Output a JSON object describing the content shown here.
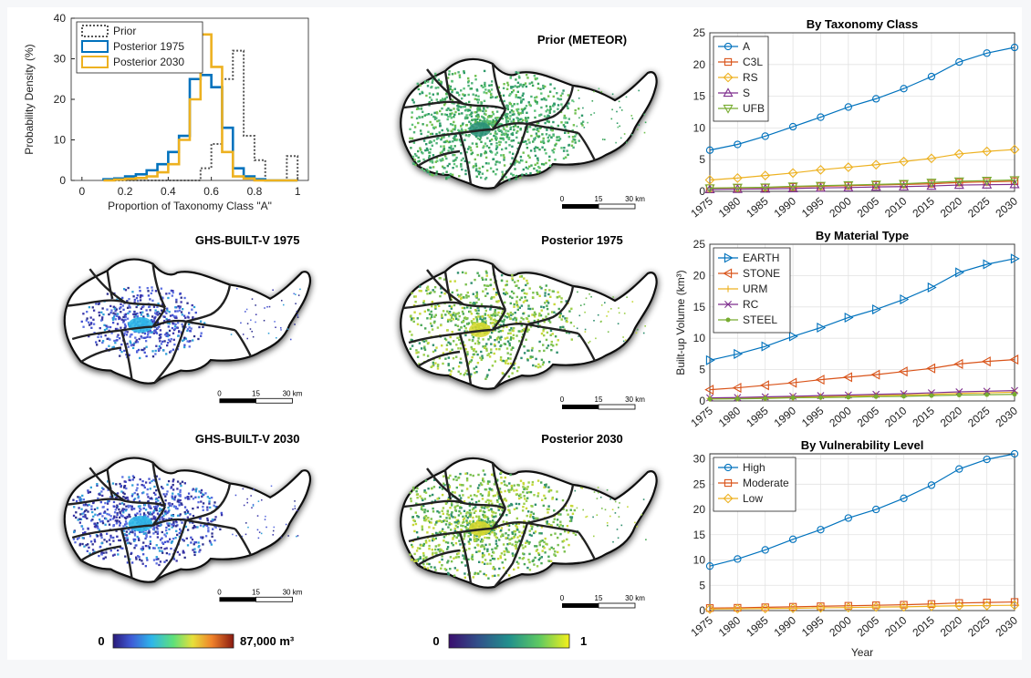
{
  "histogram": {
    "xlabel": "Proportion of Taxonomy Class \"A\"",
    "ylabel": "Probability Density (%)",
    "xticks": [
      "0",
      "0.2",
      "0.4",
      "0.6",
      "0.8",
      "1"
    ],
    "yticks": [
      "0",
      "10",
      "20",
      "30",
      "40"
    ]
  },
  "maps": {
    "prior": {
      "title": "Prior (METEOR)"
    },
    "ghs1975": {
      "title": "GHS-BUILT-V 1975"
    },
    "post1975": {
      "title": "Posterior 1975"
    },
    "ghs2030": {
      "title": "GHS-BUILT-V 2030"
    },
    "post2030": {
      "title": "Posterior 2030"
    },
    "scalebar": {
      "l0": "0",
      "l1": "15",
      "l2": "30 km"
    }
  },
  "colorbars": {
    "volume": {
      "min": "0",
      "max": "87,000 m³"
    },
    "proportion": {
      "min": "0",
      "max": "1"
    }
  },
  "shared": {
    "ylabel": "Built-up Volume (km³)",
    "xlabel": "Year"
  },
  "colors": {
    "blue": "#0072bd",
    "orange": "#d95319",
    "yellow": "#edb120",
    "purple": "#7e2f8e",
    "green": "#77ac30",
    "gray": "#555555"
  },
  "chart_data": [
    {
      "type": "bar",
      "xlabel": "Proportion of Taxonomy Class \"A\"",
      "ylabel": "Probability Density (%)",
      "xlim": [
        -0.05,
        1.05
      ],
      "ylim": [
        0,
        40
      ],
      "bin_edges": [
        0.1,
        0.15,
        0.2,
        0.25,
        0.3,
        0.35,
        0.4,
        0.45,
        0.5,
        0.55,
        0.6,
        0.65,
        0.7,
        0.75,
        0.8,
        0.85,
        0.9,
        0.95,
        1.0
      ],
      "series": [
        {
          "name": "Prior",
          "color": "#555555",
          "style": "dotted",
          "values": [
            0,
            0,
            0,
            0,
            0,
            0,
            0,
            0,
            0,
            3,
            9,
            25,
            32,
            11,
            5,
            0,
            0,
            6
          ]
        },
        {
          "name": "Posterior 1975",
          "color": "#0072bd",
          "style": "solid",
          "values": [
            0.3,
            0.5,
            1,
            1.5,
            2.5,
            4,
            7,
            11,
            25,
            26,
            23,
            13,
            3,
            1,
            0.3,
            0,
            0,
            0
          ]
        },
        {
          "name": "Posterior 2030",
          "color": "#edb120",
          "style": "solid",
          "values": [
            0,
            0.2,
            0.4,
            0.6,
            1,
            2,
            4,
            10,
            20,
            36,
            28,
            7,
            1,
            0.5,
            0,
            0,
            0,
            0
          ]
        }
      ]
    },
    {
      "type": "line",
      "title": "By Taxonomy Class",
      "x": [
        1975,
        1980,
        1985,
        1990,
        1995,
        2000,
        2005,
        2010,
        2015,
        2020,
        2025,
        2030
      ],
      "ylim": [
        0,
        25
      ],
      "yticks": [
        0,
        5,
        10,
        15,
        20,
        25
      ],
      "series": [
        {
          "name": "A",
          "marker": "circle",
          "color": "#0072bd",
          "values": [
            6.5,
            7.4,
            8.7,
            10.2,
            11.7,
            13.3,
            14.6,
            16.2,
            18.1,
            20.4,
            21.8,
            22.7
          ]
        },
        {
          "name": "C3L",
          "marker": "square",
          "color": "#d95319",
          "values": [
            0.5,
            0.55,
            0.6,
            0.7,
            0.8,
            0.9,
            1.0,
            1.1,
            1.2,
            1.4,
            1.5,
            1.6
          ]
        },
        {
          "name": "RS",
          "marker": "diamond",
          "color": "#edb120",
          "values": [
            1.8,
            2.1,
            2.5,
            2.9,
            3.4,
            3.8,
            4.2,
            4.7,
            5.2,
            5.9,
            6.3,
            6.6
          ]
        },
        {
          "name": "S",
          "marker": "triangle-up",
          "color": "#7e2f8e",
          "values": [
            0.3,
            0.35,
            0.4,
            0.45,
            0.55,
            0.6,
            0.7,
            0.75,
            0.85,
            1.0,
            1.05,
            1.1
          ]
        },
        {
          "name": "UFB",
          "marker": "triangle-down",
          "color": "#77ac30",
          "values": [
            0.5,
            0.6,
            0.65,
            0.8,
            0.9,
            1.0,
            1.1,
            1.2,
            1.4,
            1.6,
            1.7,
            1.8
          ]
        }
      ]
    },
    {
      "type": "line",
      "title": "By Material Type",
      "ylabel": "Built-up Volume (km³)",
      "x": [
        1975,
        1980,
        1985,
        1990,
        1995,
        2000,
        2005,
        2010,
        2015,
        2020,
        2025,
        2030
      ],
      "ylim": [
        0,
        25
      ],
      "yticks": [
        0,
        5,
        10,
        15,
        20,
        25
      ],
      "series": [
        {
          "name": "EARTH",
          "marker": "triangle-right",
          "color": "#0072bd",
          "values": [
            6.5,
            7.5,
            8.7,
            10.3,
            11.7,
            13.3,
            14.6,
            16.2,
            18.1,
            20.5,
            21.8,
            22.7
          ]
        },
        {
          "name": "STONE",
          "marker": "triangle-left",
          "color": "#d95319",
          "values": [
            1.8,
            2.1,
            2.5,
            2.9,
            3.4,
            3.8,
            4.2,
            4.7,
            5.2,
            5.9,
            6.3,
            6.6
          ]
        },
        {
          "name": "URM",
          "marker": "plus",
          "color": "#edb120",
          "values": [
            0.4,
            0.45,
            0.5,
            0.6,
            0.7,
            0.8,
            0.85,
            0.95,
            1.05,
            1.2,
            1.3,
            1.4
          ]
        },
        {
          "name": "RC",
          "marker": "x",
          "color": "#7e2f8e",
          "values": [
            0.5,
            0.55,
            0.65,
            0.75,
            0.85,
            0.95,
            1.05,
            1.15,
            1.3,
            1.45,
            1.55,
            1.65
          ]
        },
        {
          "name": "STEEL",
          "marker": "dot",
          "color": "#77ac30",
          "values": [
            0.3,
            0.35,
            0.4,
            0.5,
            0.55,
            0.6,
            0.7,
            0.75,
            0.85,
            0.95,
            1.0,
            1.05
          ]
        }
      ]
    },
    {
      "type": "line",
      "title": "By Vulnerability Level",
      "xlabel": "Year",
      "x": [
        1975,
        1980,
        1985,
        1990,
        1995,
        2000,
        2005,
        2010,
        2015,
        2020,
        2025,
        2030
      ],
      "ylim": [
        0,
        31
      ],
      "yticks": [
        0,
        5,
        10,
        15,
        20,
        25,
        30
      ],
      "series": [
        {
          "name": "High",
          "marker": "circle",
          "color": "#0072bd",
          "values": [
            8.8,
            10.2,
            12.0,
            14.1,
            16.0,
            18.3,
            20.0,
            22.2,
            24.8,
            28.0,
            29.9,
            31.0
          ]
        },
        {
          "name": "Moderate",
          "marker": "square",
          "color": "#d95319",
          "values": [
            0.5,
            0.55,
            0.65,
            0.75,
            0.85,
            0.95,
            1.05,
            1.15,
            1.3,
            1.5,
            1.6,
            1.7
          ]
        },
        {
          "name": "Low",
          "marker": "diamond",
          "color": "#edb120",
          "values": [
            0.3,
            0.35,
            0.4,
            0.45,
            0.55,
            0.6,
            0.7,
            0.75,
            0.85,
            0.95,
            1.0,
            1.05
          ]
        }
      ]
    }
  ]
}
